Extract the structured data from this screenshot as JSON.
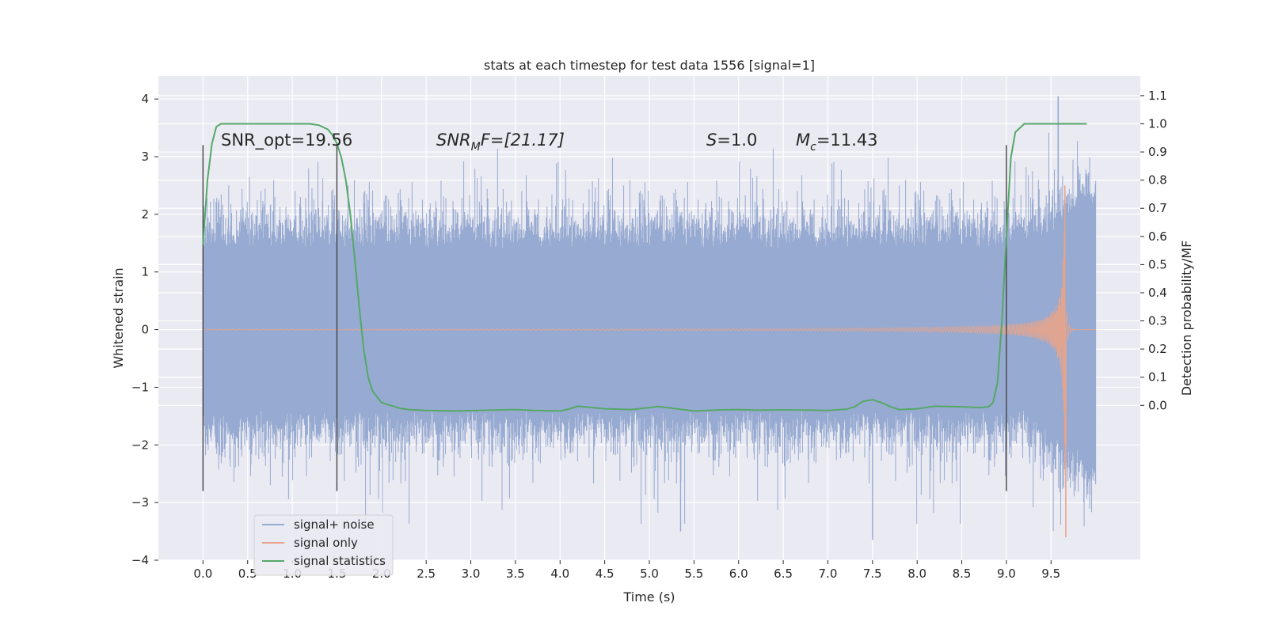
{
  "chart_data": {
    "type": "line",
    "title": "stats at each timestep for test data 1556 [signal=1]",
    "xlabel": "Time (s)",
    "ylabel": "Whitened strain",
    "y2label": "Detection probability/MF",
    "xlim": [
      -0.5,
      10.5
    ],
    "ylim": [
      -4,
      4.4
    ],
    "y2lim": [
      -0.55,
      1.17
    ],
    "x_ticks": [
      "0.0",
      "0.5",
      "1.0",
      "1.5",
      "2.0",
      "2.5",
      "3.0",
      "3.5",
      "4.0",
      "4.5",
      "5.0",
      "5.5",
      "6.0",
      "6.5",
      "7.0",
      "7.5",
      "8.0",
      "8.5",
      "9.0",
      "9.5"
    ],
    "y_ticks": [
      "4",
      "3",
      "2",
      "1",
      "0",
      "−1",
      "−2",
      "−3",
      "−4"
    ],
    "y2_ticks": [
      "1.1",
      "1.0",
      "0.9",
      "0.8",
      "0.7",
      "0.6",
      "0.5",
      "0.4",
      "0.3",
      "0.2",
      "0.1",
      "0.0"
    ],
    "grid": true,
    "legend_placement": "lower-left",
    "annotations": {
      "snr_opt": "SNR_opt=19.56",
      "snr_mf_sym": "SNR",
      "snr_mf_sub": "M",
      "snr_mf_rest": "F=[21.17]",
      "s_sym": "S",
      "s_rest": "=1.0",
      "mc_sym": "M",
      "mc_sub": "c",
      "mc_rest": "=11.43"
    },
    "vertical_lines_x": [
      0.0,
      1.5,
      9.0
    ],
    "series": [
      {
        "name": "signal+ noise",
        "color": "#97aad1",
        "duration_s": 10.0,
        "envelope_abs": 1.4,
        "spike_max": 4.05,
        "spike_min": -3.65
      },
      {
        "name": "signal only",
        "color": "#e8a48a",
        "chirp_start_s": 4.5,
        "merger_s": 9.67,
        "peak": 2.5,
        "trough": -3.6
      },
      {
        "name": "signal statistics",
        "color": "#55a868",
        "x": [
          0.0,
          0.05,
          0.1,
          0.15,
          0.2,
          0.3,
          0.5,
          0.8,
          1.0,
          1.2,
          1.3,
          1.4,
          1.45,
          1.5,
          1.55,
          1.6,
          1.65,
          1.7,
          1.75,
          1.8,
          1.85,
          1.9,
          1.95,
          2.0,
          2.1,
          2.2,
          2.3,
          2.5,
          2.8,
          3.0,
          3.2,
          3.5,
          3.7,
          4.0,
          4.1,
          4.2,
          4.5,
          4.8,
          5.0,
          5.1,
          5.2,
          5.5,
          5.8,
          6.0,
          6.2,
          6.5,
          6.8,
          7.0,
          7.2,
          7.3,
          7.4,
          7.5,
          7.6,
          7.7,
          7.8,
          8.0,
          8.2,
          8.5,
          8.7,
          8.8,
          8.85,
          8.9,
          8.95,
          9.0,
          9.05,
          9.1,
          9.2,
          9.3,
          9.5,
          9.7,
          9.8,
          9.9
        ],
        "y": [
          0.57,
          0.8,
          0.93,
          0.99,
          1.0,
          1.0,
          1.0,
          1.0,
          1.0,
          1.0,
          0.995,
          0.98,
          0.96,
          0.93,
          0.88,
          0.8,
          0.68,
          0.52,
          0.35,
          0.2,
          0.1,
          0.05,
          0.03,
          0.01,
          0.0,
          -0.01,
          -0.015,
          -0.018,
          -0.02,
          -0.019,
          -0.017,
          -0.015,
          -0.018,
          -0.02,
          -0.013,
          -0.003,
          -0.012,
          -0.015,
          -0.008,
          -0.004,
          -0.008,
          -0.02,
          -0.016,
          -0.015,
          -0.017,
          -0.016,
          -0.017,
          -0.018,
          -0.014,
          -0.005,
          0.015,
          0.02,
          0.01,
          -0.005,
          -0.015,
          -0.012,
          -0.003,
          -0.005,
          -0.008,
          -0.005,
          0.01,
          0.08,
          0.3,
          0.6,
          0.88,
          0.97,
          1.0,
          1.0,
          1.0,
          1.0,
          1.0,
          1.0
        ]
      }
    ]
  }
}
